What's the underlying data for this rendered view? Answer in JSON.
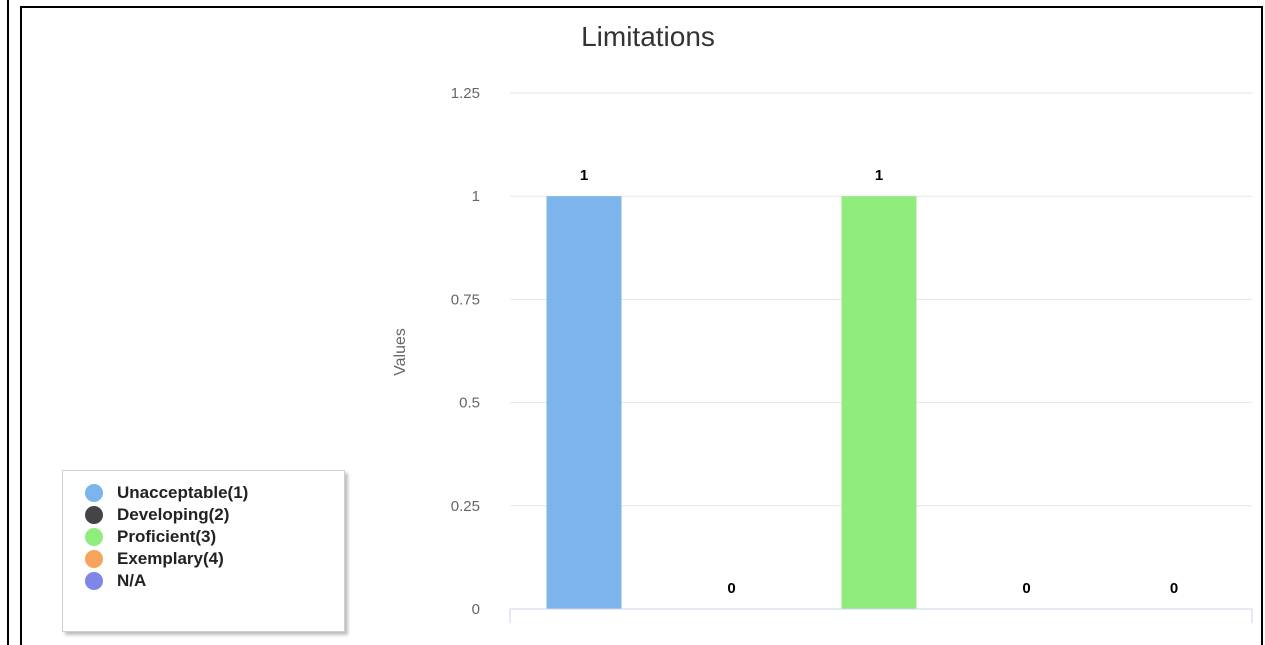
{
  "chart_data": {
    "type": "bar",
    "title": "Limitations",
    "ylabel": "Values",
    "xlabel": "",
    "ylim": [
      0,
      1.25
    ],
    "yticks": [
      "0",
      "0.25",
      "0.5",
      "0.75",
      "1",
      "1.25"
    ],
    "grid": true,
    "legend_position": "bottom-left",
    "categories": [
      "Unacceptable(1)",
      "Developing(2)",
      "Proficient(3)",
      "Exemplary(4)",
      "N/A"
    ],
    "values": [
      1,
      0,
      1,
      0,
      0
    ],
    "data_labels": [
      "1",
      "0",
      "1",
      "0",
      "0"
    ],
    "colors": [
      "#7cb5ec",
      "#434348",
      "#90ed7d",
      "#f7a35c",
      "#8085e9"
    ]
  }
}
